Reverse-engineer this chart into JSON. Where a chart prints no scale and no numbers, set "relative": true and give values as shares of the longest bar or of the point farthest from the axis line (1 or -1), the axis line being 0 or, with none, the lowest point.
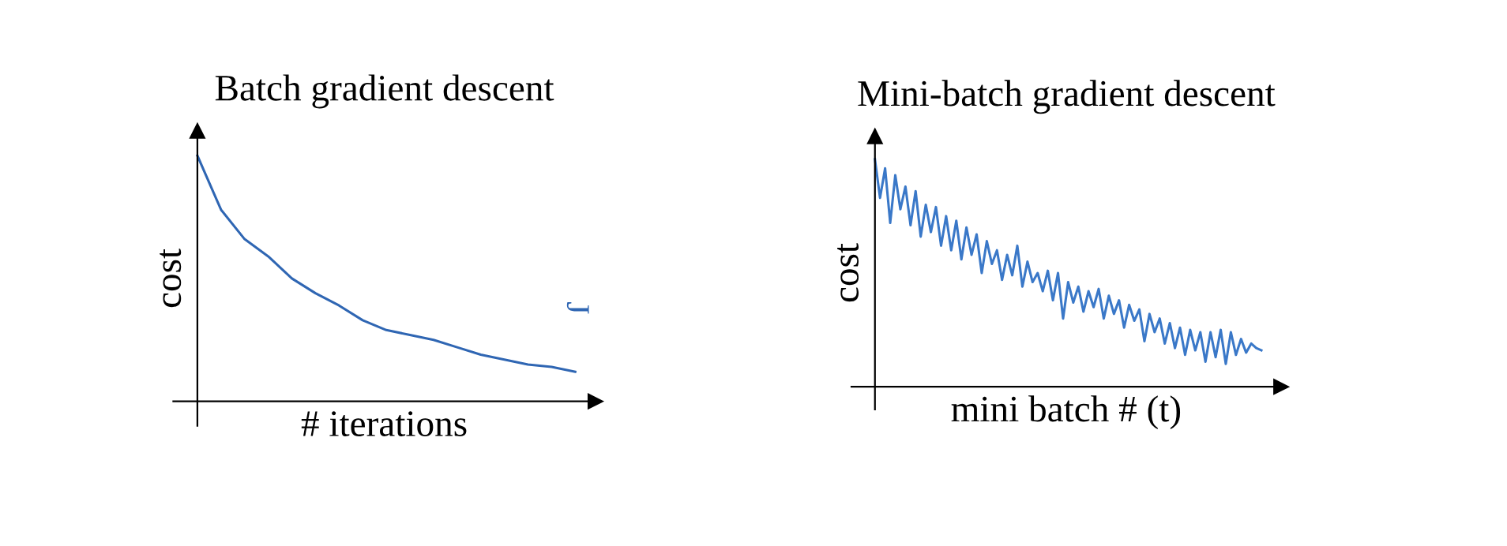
{
  "chart_data": [
    {
      "type": "line",
      "title": "Batch gradient descent",
      "xlabel": "# iterations",
      "ylabel": "cost",
      "relative": true,
      "annotations": [
        "J"
      ],
      "categories": [
        null,
        null,
        null,
        null,
        null,
        null,
        null,
        null,
        null,
        null,
        null,
        null,
        null,
        null,
        null,
        null,
        null
      ],
      "series": [
        {
          "color": "#2f66b3",
          "values": [
            1.0,
            0.78,
            0.66,
            0.59,
            0.5,
            0.44,
            0.39,
            0.33,
            0.29,
            0.27,
            0.25,
            0.22,
            0.19,
            0.17,
            0.15,
            0.14,
            0.12
          ]
        }
      ]
    },
    {
      "type": "line",
      "title": "Mini-batch gradient descent",
      "xlabel": "mini batch # (t)",
      "ylabel": "cost",
      "relative": true,
      "categories": [
        null,
        null,
        null,
        null,
        null,
        null,
        null,
        null,
        null,
        null,
        null,
        null,
        null,
        null,
        null,
        null,
        null,
        null,
        null,
        null,
        null,
        null,
        null,
        null,
        null,
        null,
        null,
        null,
        null,
        null,
        null,
        null,
        null,
        null,
        null,
        null,
        null,
        null,
        null,
        null,
        null,
        null,
        null,
        null,
        null,
        null,
        null,
        null,
        null,
        null,
        null,
        null,
        null,
        null,
        null,
        null,
        null,
        null,
        null,
        null,
        null,
        null,
        null,
        null,
        null,
        null,
        null,
        null,
        null,
        null,
        null,
        null,
        null,
        null,
        null,
        null,
        null
      ],
      "series": [
        {
          "color": "#3a78c8",
          "values": [
            1.0,
            0.83,
            0.96,
            0.72,
            0.93,
            0.78,
            0.88,
            0.71,
            0.86,
            0.66,
            0.8,
            0.68,
            0.79,
            0.62,
            0.75,
            0.6,
            0.73,
            0.56,
            0.7,
            0.58,
            0.67,
            0.5,
            0.64,
            0.54,
            0.6,
            0.47,
            0.58,
            0.49,
            0.62,
            0.44,
            0.55,
            0.46,
            0.5,
            0.42,
            0.51,
            0.38,
            0.5,
            0.3,
            0.46,
            0.37,
            0.44,
            0.33,
            0.42,
            0.35,
            0.43,
            0.3,
            0.4,
            0.32,
            0.38,
            0.26,
            0.36,
            0.29,
            0.34,
            0.2,
            0.32,
            0.24,
            0.3,
            0.19,
            0.28,
            0.17,
            0.26,
            0.14,
            0.25,
            0.16,
            0.24,
            0.11,
            0.24,
            0.13,
            0.25,
            0.1,
            0.24,
            0.14,
            0.21,
            0.15,
            0.19,
            0.17,
            0.16
          ]
        }
      ]
    }
  ]
}
